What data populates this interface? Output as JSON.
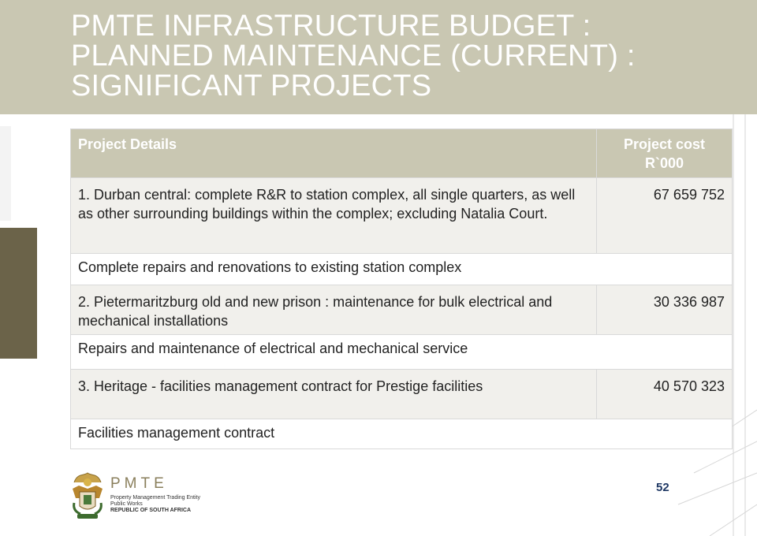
{
  "slide": {
    "title_lines": [
      "PMTE INFRASTRUCTURE BUDGET :",
      "PLANNED MAINTENANCE (CURRENT) :",
      "SIGNIFICANT PROJECTS"
    ],
    "page_number": "52"
  },
  "table": {
    "headers": {
      "details": "Project Details",
      "cost_line1": "Project cost",
      "cost_line2": "R`000"
    },
    "projects": [
      {
        "details": "1. Durban central: complete R&R to station complex, all single quarters, as well as other surrounding buildings within the complex; excluding Natalia Court.",
        "cost": "67 659 752",
        "description": "Complete repairs and renovations to existing station complex"
      },
      {
        "details": "2. Pietermaritzburg old and new prison : maintenance for bulk electrical and mechanical installations",
        "cost": "30 336 987",
        "description": "Repairs and maintenance of electrical and mechanical service"
      },
      {
        "details": "3. Heritage - facilities management contract for Prestige facilities",
        "cost": "40 570 323",
        "description": "Facilities management contract"
      }
    ]
  },
  "logo": {
    "name": "PMTE",
    "line1": "Property Management Trading Entity",
    "line2": "Public Works",
    "line3": "REPUBLIC OF SOUTH AFRICA"
  },
  "colors": {
    "band": "#c9c7b2",
    "accent": "#6b6349",
    "row_fill": "#f1f0ec",
    "page_number": "#1f3864"
  }
}
